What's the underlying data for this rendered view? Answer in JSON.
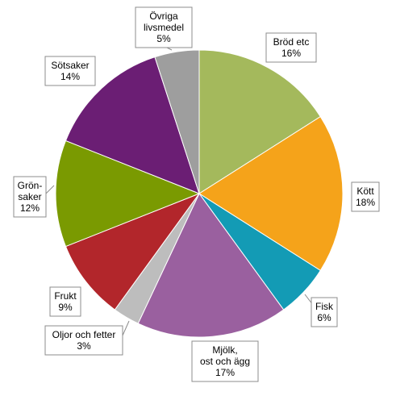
{
  "chart_data": {
    "type": "pie",
    "title": "",
    "start_angle_deg": 0,
    "direction": "clockwise",
    "legend": "none",
    "slices": [
      {
        "name": "Bröd etc",
        "lines": [
          "Bröd etc",
          "16%"
        ],
        "value": 16,
        "color": "#A4B95C"
      },
      {
        "name": "Kött",
        "lines": [
          "Kött",
          "18%"
        ],
        "value": 18,
        "color": "#F5A31A"
      },
      {
        "name": "Fisk",
        "lines": [
          "Fisk",
          "6%"
        ],
        "value": 6,
        "color": "#139BB5"
      },
      {
        "name": "Mjölk, ost och ägg",
        "lines": [
          "Mjölk,",
          "ost och ägg",
          "17%"
        ],
        "value": 17,
        "color": "#9A609F"
      },
      {
        "name": "Oljor och fetter",
        "lines": [
          "Oljor och fetter",
          "3%"
        ],
        "value": 3,
        "color": "#BDBDBD"
      },
      {
        "name": "Frukt",
        "lines": [
          "Frukt",
          "9%"
        ],
        "value": 9,
        "color": "#B2262B"
      },
      {
        "name": "Grönsaker",
        "lines": [
          "Grön-",
          "saker",
          "12%"
        ],
        "value": 12,
        "color": "#7A9A01"
      },
      {
        "name": "Sötsaker",
        "lines": [
          "Sötsaker",
          "14%"
        ],
        "value": 14,
        "color": "#6B1E74"
      },
      {
        "name": "Övriga livsmedel",
        "lines": [
          "Övriga",
          "livsmedel",
          "5%"
        ],
        "value": 5,
        "color": "#9E9E9E"
      }
    ]
  }
}
